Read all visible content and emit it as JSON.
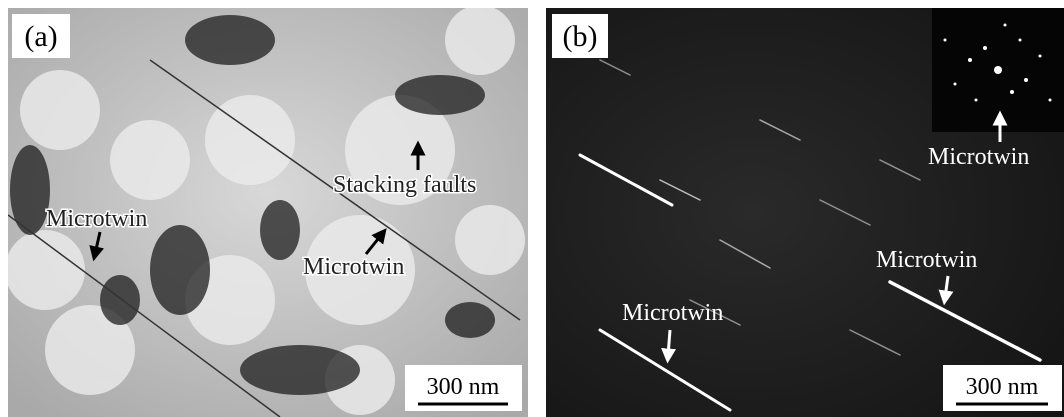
{
  "panels": [
    {
      "label": "(a)",
      "scale_bar": "300 nm",
      "annotations": [
        "Stacking faults",
        "Microtwin",
        "Microtwin"
      ]
    },
    {
      "label": "(b)",
      "scale_bar": "300 nm",
      "annotations": [
        "Microtwin",
        "Microtwin",
        "Microtwin"
      ]
    }
  ]
}
